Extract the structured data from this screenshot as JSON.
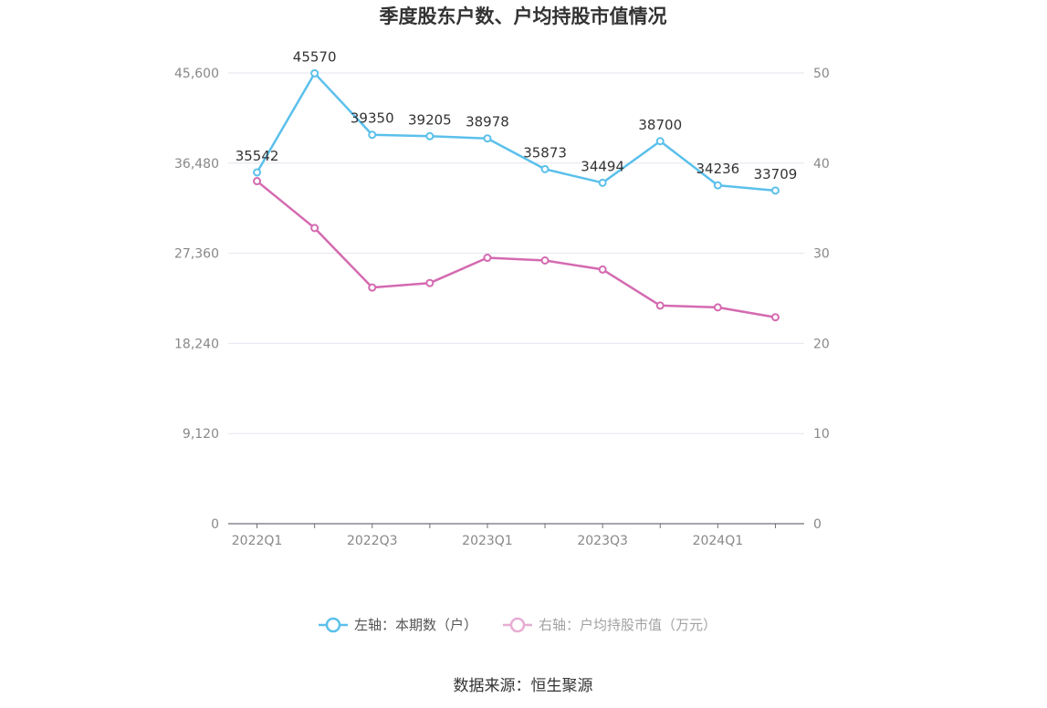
{
  "chart_data": {
    "type": "line",
    "title": "季度股东户数、户均持股市值情况",
    "categories": [
      "2022Q1",
      "2022Q2",
      "2022Q3",
      "2022Q4",
      "2023Q1",
      "2023Q2",
      "2023Q3",
      "2023Q4",
      "2024Q1",
      "2024Q2"
    ],
    "x_tick_labels": [
      "2022Q1",
      "2022Q3",
      "2023Q1",
      "2023Q3",
      "2024Q1"
    ],
    "y_left": {
      "min": 0,
      "max": 45600,
      "ticks": [
        "0",
        "9,120",
        "18,240",
        "27,360",
        "36,480",
        "45,600"
      ]
    },
    "y_right": {
      "min": 0,
      "max": 50,
      "ticks": [
        "0",
        "10",
        "20",
        "30",
        "40",
        "50"
      ]
    },
    "grid": true,
    "legend_position": "bottom",
    "series": [
      {
        "name": "左轴：本期数（户）",
        "axis": "left",
        "color": "#5bc0eb",
        "values": [
          35542,
          45570,
          39350,
          39205,
          38978,
          35873,
          34494,
          38700,
          34236,
          33709
        ],
        "labels": [
          "35542",
          "45570",
          "39350",
          "39205",
          "38978",
          "35873",
          "34494",
          "38700",
          "34236",
          "33709"
        ]
      },
      {
        "name": "右轴：户均持股市值（万元）",
        "axis": "right",
        "color": "#d46ab0",
        "values": [
          38.0,
          32.8,
          26.2,
          26.7,
          29.5,
          29.2,
          28.2,
          24.2,
          24.0,
          22.9
        ]
      }
    ]
  },
  "footer": {
    "source": "数据来源：恒生聚源"
  }
}
